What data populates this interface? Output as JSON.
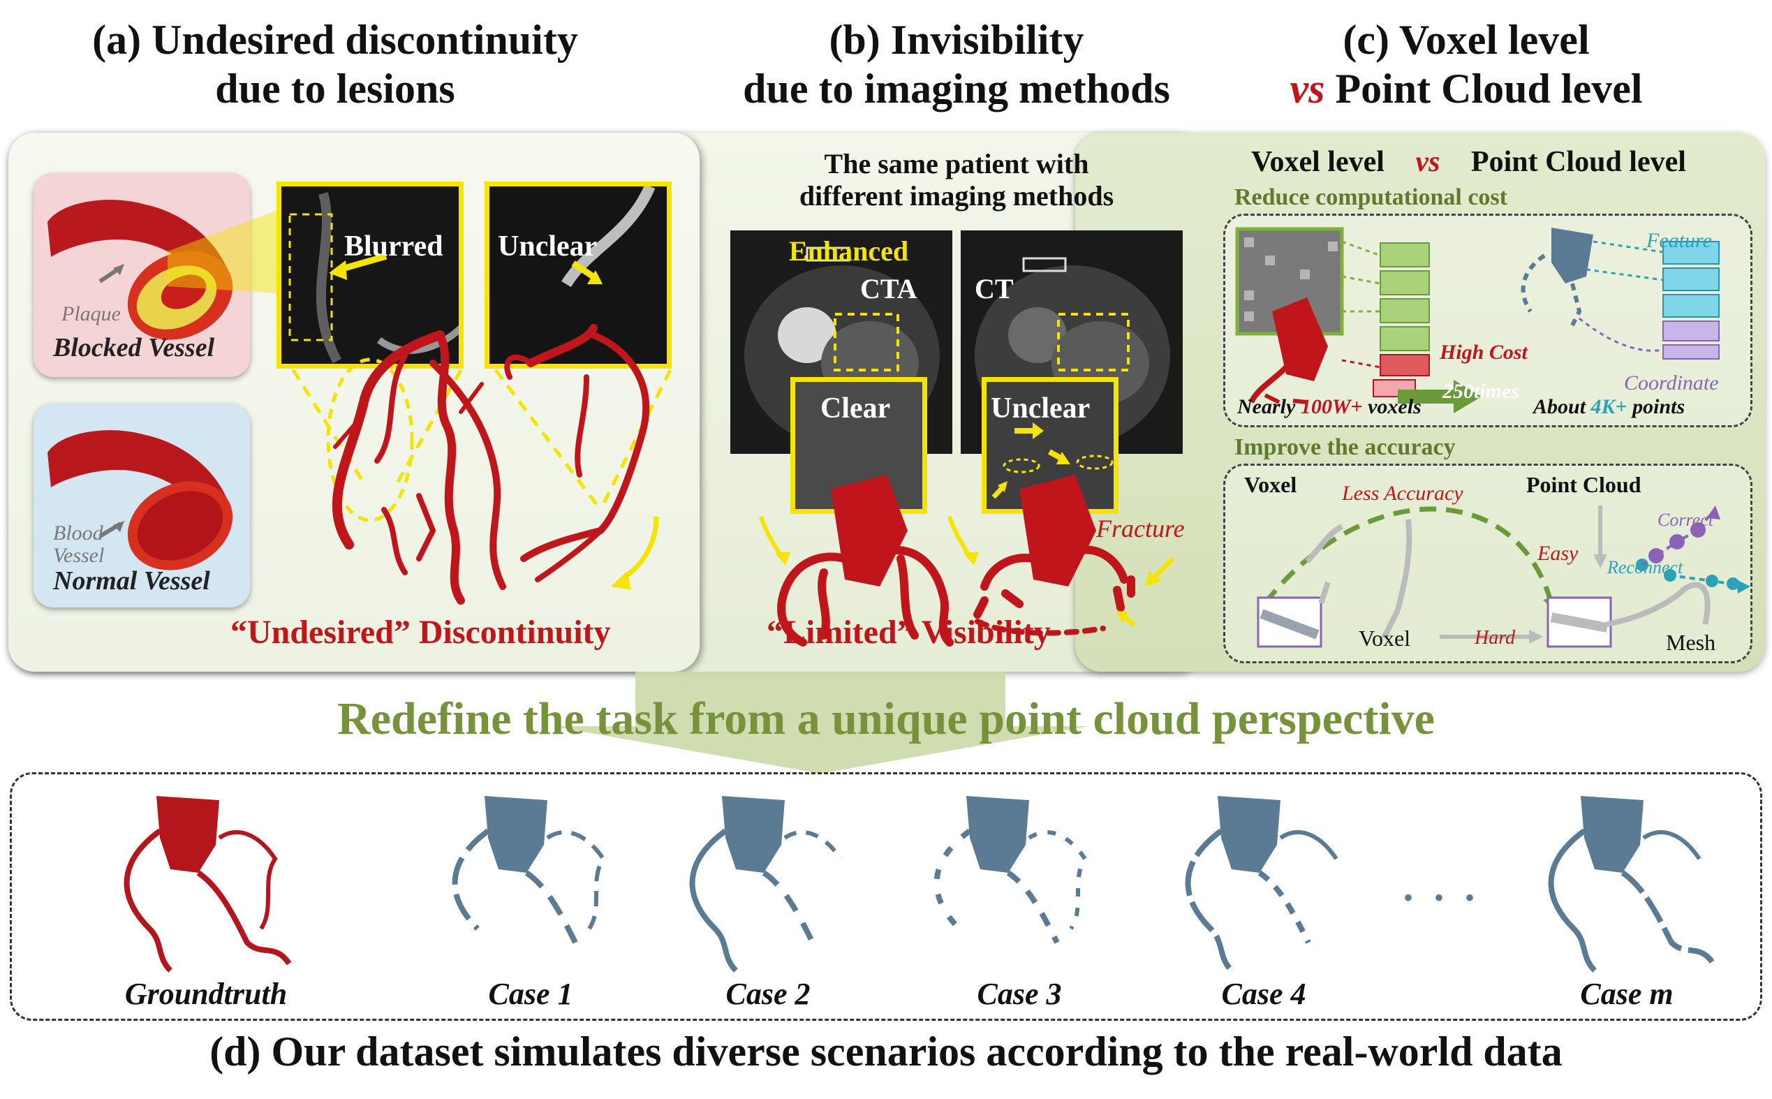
{
  "headers": {
    "a": [
      "(a) Undesired discontinuity",
      "due to lesions"
    ],
    "b": [
      "(b) Invisibility",
      "due to imaging methods"
    ],
    "c_line1": "(c) Voxel level",
    "c_vs": "vs",
    "c_rest": " Point Cloud level"
  },
  "panel_a": {
    "plaque": "Plaque",
    "blocked_vessel": "Blocked Vessel",
    "blood_vessel": [
      "Blood",
      "Vessel"
    ],
    "normal_vessel": "Normal Vessel",
    "blurred": "Blurred",
    "unclear": "Unclear",
    "caption_quote": "“Undesired”",
    "caption_word": "Discontinuity"
  },
  "panel_b": {
    "title": [
      "The same patient with",
      "different imaging methods"
    ],
    "enhanced": "Enhanced",
    "cta": "CTA",
    "ct": "CT",
    "clear": "Clear",
    "unclear": "Unclear",
    "fracture": "Fracture",
    "caption_quote": "“Limited”",
    "caption_word": "Visibility"
  },
  "panel_c": {
    "title_left": "Voxel level",
    "title_vs": "vs",
    "title_right": "Point Cloud level",
    "section1": "Reduce computational cost",
    "feature": "Feature",
    "high_cost": "High Cost",
    "coordinate": "Coordinate",
    "times": "250times",
    "nearly": "Nearly ",
    "nearly_num": "100W+",
    "nearly_unit": " voxels",
    "about": "About ",
    "about_num": "4K+",
    "about_unit": " points",
    "section2": "Improve the accuracy",
    "voxel": "Voxel",
    "less_accuracy": "Less Accuracy",
    "point_cloud": "Point Cloud",
    "correct": "Correct",
    "easy": "Easy",
    "reconnect": "Reconnect",
    "voxel2": "Voxel",
    "hard": "Hard",
    "mesh": "Mesh"
  },
  "banner": "Redefine the task from a unique point cloud perspective",
  "dataset": {
    "cases": [
      "Groundtruth",
      "Case 1",
      "Case 2",
      "Case 3",
      "Case 4",
      "Case m"
    ],
    "ellipsis": "• • •",
    "caption": "(d) Our dataset simulates diverse scenarios according to the real-world data"
  },
  "colors": {
    "vessel_red": "#c0161b",
    "highlight_yellow": "#f4e400",
    "banner_green": "#76933c",
    "case_blue": "#5b7a94",
    "accent_purple": "#8a63b8",
    "accent_teal": "#2aa3b8"
  }
}
